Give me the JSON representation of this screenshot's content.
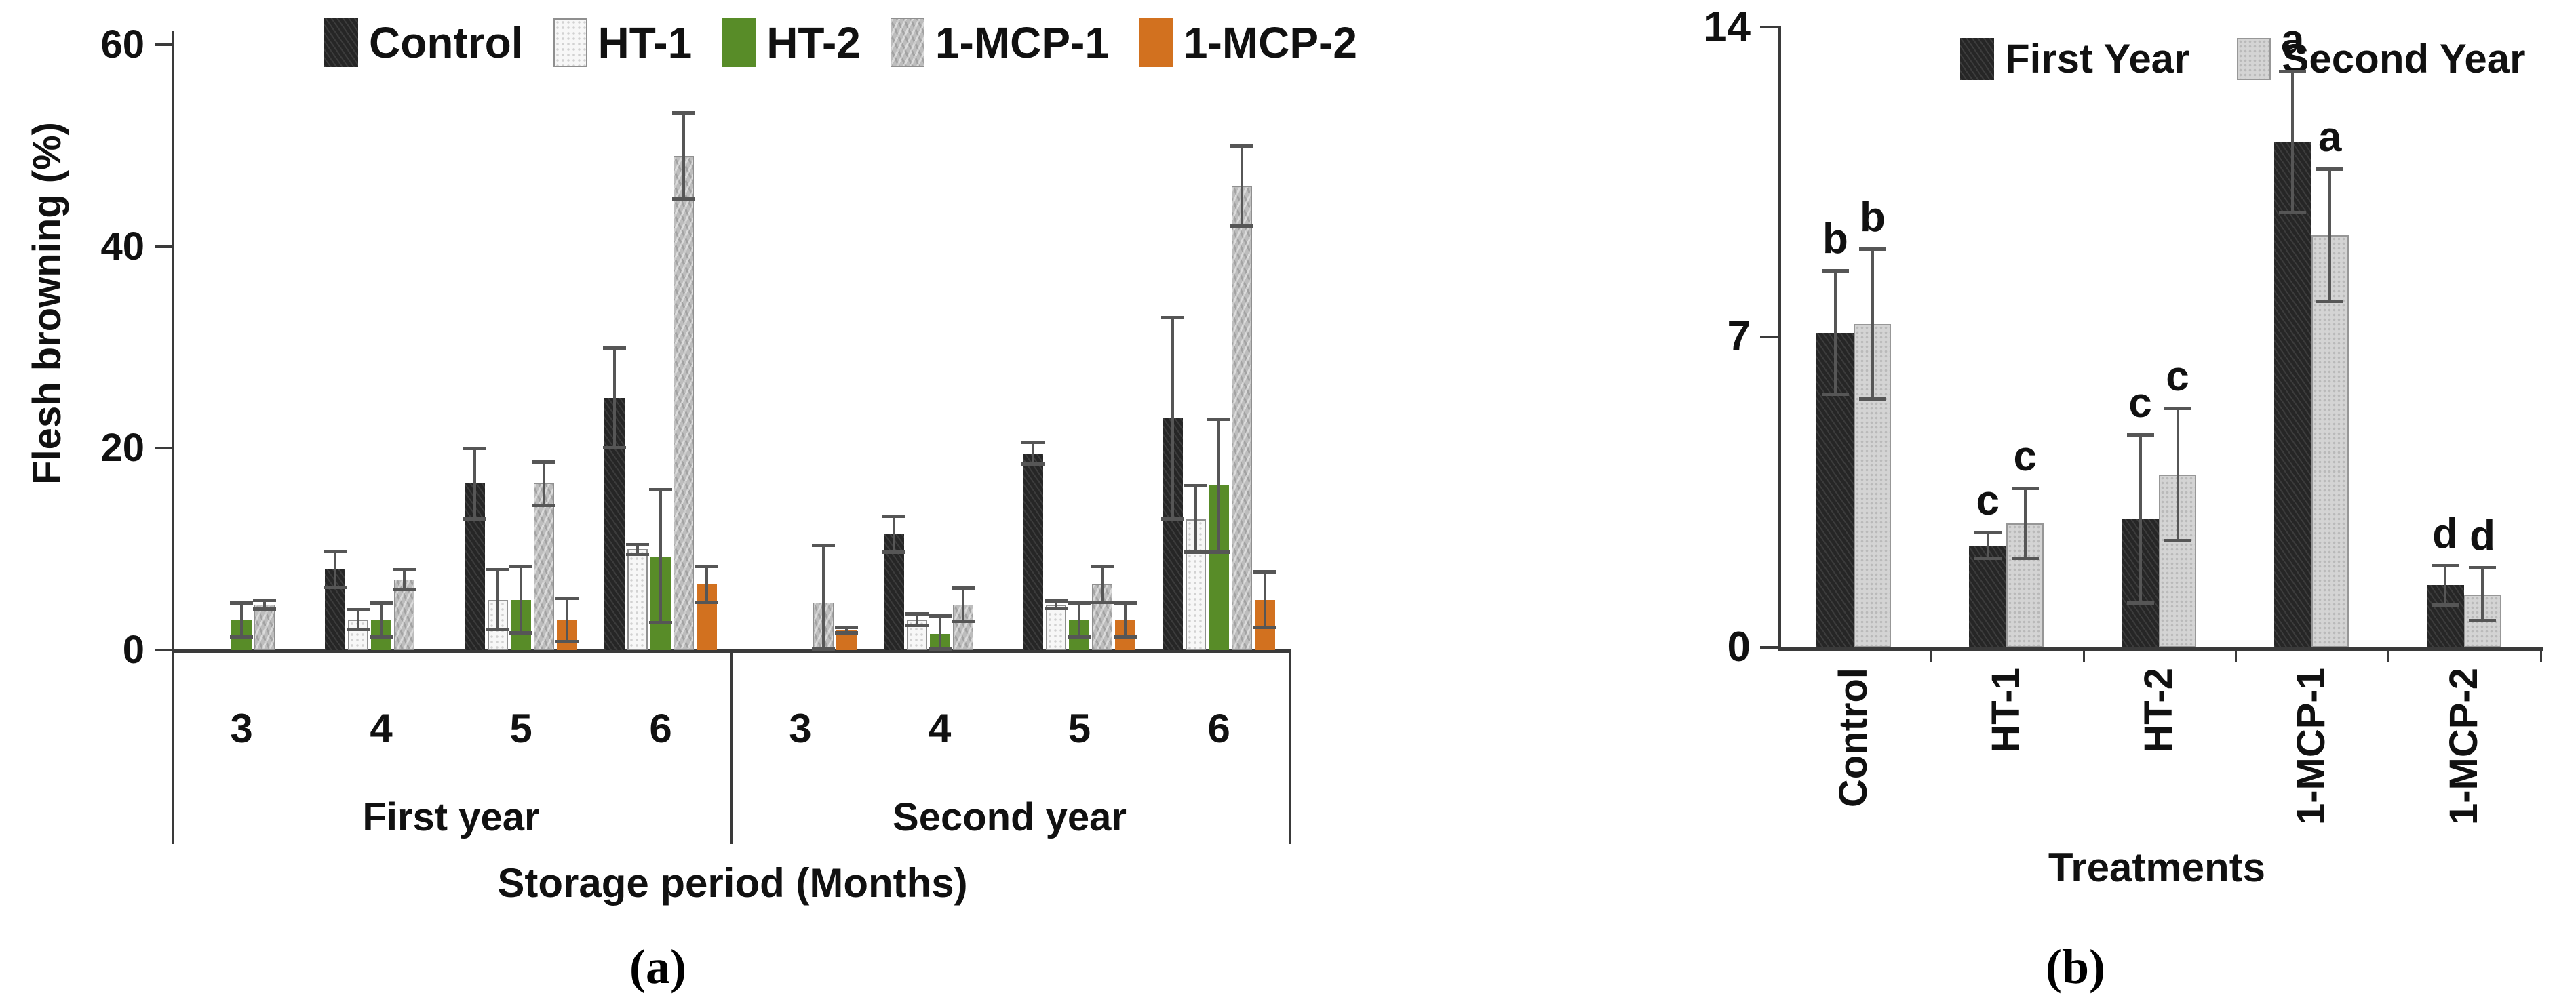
{
  "colors": {
    "Control": "#262626",
    "HT-1": "#f7f7f7",
    "HT-2": "#588c28",
    "1-MCP-1": "#bdbdbd",
    "1-MCP-2": "#d2711f",
    "First Year": "#262626",
    "Second Year": "#d4d4d4",
    "error_bar": "#565656"
  },
  "chart_data": [
    {
      "id": "a",
      "type": "bar",
      "caption": "(a)",
      "y_axis": {
        "label": "Flesh browning (%)",
        "ticks": [
          0,
          20,
          40,
          60
        ],
        "max": 60
      },
      "x_axis": {
        "label": "Storage period (Months)"
      },
      "legend": [
        "Control",
        "HT-1",
        "HT-2",
        "1-MCP-1",
        "1-MCP-2"
      ],
      "legend_position": "top",
      "grid": false,
      "groups": [
        {
          "label": "First year",
          "categories": [
            "3",
            "4",
            "5",
            "6"
          ],
          "series": [
            {
              "name": "Control",
              "values": [
                0,
                8,
                16.5,
                25
              ],
              "errors": [
                0,
                1.8,
                3.5,
                5
              ]
            },
            {
              "name": "HT-1",
              "values": [
                0,
                3,
                5,
                10
              ],
              "errors": [
                0,
                1,
                3,
                0.5
              ]
            },
            {
              "name": "HT-2",
              "values": [
                3,
                3,
                5,
                9.3
              ],
              "errors": [
                1.7,
                1.7,
                3.3,
                6.6
              ]
            },
            {
              "name": "1-MCP-1",
              "values": [
                4.5,
                7,
                16.5,
                49
              ],
              "errors": [
                0.5,
                1,
                2.2,
                4.3
              ]
            },
            {
              "name": "1-MCP-2",
              "values": [
                0,
                0,
                3,
                6.5
              ],
              "errors": [
                0,
                0,
                2.2,
                1.8
              ]
            }
          ]
        },
        {
          "label": "Second year",
          "categories": [
            "3",
            "4",
            "5",
            "6"
          ],
          "series": [
            {
              "name": "Control",
              "values": [
                0,
                11.5,
                19.5,
                23
              ],
              "errors": [
                0,
                1.8,
                1.1,
                10
              ]
            },
            {
              "name": "HT-1",
              "values": [
                0,
                3,
                4.5,
                13
              ],
              "errors": [
                0,
                0.6,
                0.4,
                3.3
              ]
            },
            {
              "name": "HT-2",
              "values": [
                0,
                1.6,
                3,
                16.3
              ],
              "errors": [
                0,
                1.8,
                1.7,
                6.6
              ]
            },
            {
              "name": "1-MCP-1",
              "values": [
                4.7,
                4.5,
                6.5,
                46
              ],
              "errors": [
                5.7,
                1.7,
                1.8,
                4
              ]
            },
            {
              "name": "1-MCP-2",
              "values": [
                2,
                0,
                3,
                5
              ],
              "errors": [
                0.3,
                0,
                1.7,
                2.8
              ]
            }
          ]
        }
      ]
    },
    {
      "id": "b",
      "type": "bar",
      "caption": "(b)",
      "y_axis": {
        "label": "",
        "ticks": [
          0,
          7,
          14
        ],
        "max": 14
      },
      "x_axis": {
        "label": "Treatments"
      },
      "legend": [
        "First Year",
        "Second Year"
      ],
      "legend_position": "top",
      "grid": false,
      "categories": [
        "Control",
        "HT-1",
        "HT-2",
        "1-MCP-1",
        "1-MCP-2"
      ],
      "series": [
        {
          "name": "First Year",
          "values": [
            7.1,
            2.3,
            2.9,
            11.4,
            1.4
          ],
          "errors": [
            1.4,
            0.3,
            1.9,
            1.6,
            0.45
          ],
          "letters": [
            "b",
            "c",
            "c",
            "a",
            "d"
          ]
        },
        {
          "name": "Second Year",
          "values": [
            7.3,
            2.8,
            3.9,
            9.3,
            1.2
          ],
          "errors": [
            1.7,
            0.8,
            1.5,
            1.5,
            0.6
          ],
          "letters": [
            "b",
            "c",
            "c",
            "a",
            "d"
          ]
        }
      ]
    }
  ]
}
